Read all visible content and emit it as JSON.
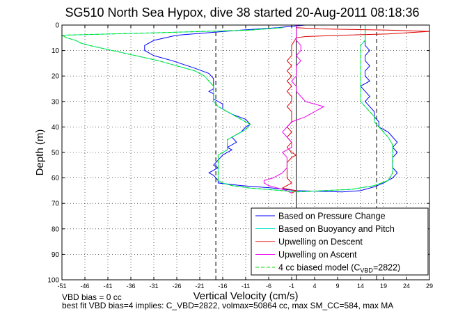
{
  "chart_data": {
    "type": "line",
    "title": "SG510 North Sea Hypox, dive 38 started 20-Aug-2011 08:18:36",
    "xlabel": "Vertical Velocity (cm/s)",
    "ylabel": "Depth (m)",
    "xlim": [
      -51,
      29
    ],
    "ylim": [
      0,
      100
    ],
    "y_reversed": true,
    "grid": true,
    "xticks": [
      -51,
      -46,
      -41,
      -36,
      -31,
      -26,
      -21,
      -16,
      -11,
      -6,
      -1,
      4,
      9,
      14,
      19,
      24,
      29
    ],
    "yticks": [
      0,
      10,
      20,
      30,
      40,
      50,
      60,
      70,
      80,
      90,
      100
    ],
    "vertical_lines": [
      {
        "x": -17.5,
        "style": "dashed"
      },
      {
        "x": 17.5,
        "style": "dashed"
      },
      {
        "x": 0,
        "style": "solid"
      }
    ],
    "legend_position": "bottom-right",
    "series": [
      {
        "name": "Based on Pressure Change",
        "color": "#0000ff",
        "points": [
          [
            2,
            0
          ],
          [
            -1,
            0.5
          ],
          [
            -4,
            1
          ],
          [
            -12,
            2
          ],
          [
            -26,
            4
          ],
          [
            -31,
            6
          ],
          [
            -33,
            8
          ],
          [
            -33,
            10
          ],
          [
            -31,
            12
          ],
          [
            -27,
            14
          ],
          [
            -22,
            17
          ],
          [
            -19,
            19
          ],
          [
            -18,
            21
          ],
          [
            -18,
            23
          ],
          [
            -18,
            25
          ],
          [
            -19,
            26
          ],
          [
            -18,
            27
          ],
          [
            -18,
            29
          ],
          [
            -16,
            31
          ],
          [
            -16,
            33
          ],
          [
            -14,
            35
          ],
          [
            -11,
            37
          ],
          [
            -10,
            39
          ],
          [
            -11,
            40
          ],
          [
            -12,
            42
          ],
          [
            -14,
            44
          ],
          [
            -13,
            46
          ],
          [
            -15,
            48
          ],
          [
            -14,
            49
          ],
          [
            -16,
            51
          ],
          [
            -17,
            53
          ],
          [
            -18,
            55
          ],
          [
            -17,
            56
          ],
          [
            -18,
            57
          ],
          [
            -19,
            58
          ],
          [
            -18,
            59
          ],
          [
            -17,
            61
          ],
          [
            -17,
            62
          ],
          [
            -12,
            63
          ],
          [
            -5,
            64
          ],
          [
            0,
            65
          ],
          [
            10,
            65.5
          ],
          [
            14,
            65
          ],
          [
            17,
            63.5
          ],
          [
            19,
            62
          ],
          [
            21,
            60
          ],
          [
            22,
            58
          ],
          [
            21,
            56
          ],
          [
            21,
            54
          ],
          [
            21,
            52
          ],
          [
            22,
            50
          ],
          [
            21,
            48
          ],
          [
            22,
            46
          ],
          [
            21,
            44
          ],
          [
            20,
            42
          ],
          [
            18,
            40
          ],
          [
            18,
            38
          ],
          [
            17,
            36
          ],
          [
            17,
            34
          ],
          [
            16,
            32
          ],
          [
            15,
            30
          ],
          [
            16,
            28
          ],
          [
            15,
            26
          ],
          [
            14,
            24
          ],
          [
            16,
            22
          ],
          [
            15,
            20
          ],
          [
            15,
            18
          ],
          [
            16,
            16
          ],
          [
            15,
            14
          ],
          [
            15,
            12
          ],
          [
            16,
            10
          ],
          [
            15,
            8
          ],
          [
            15,
            6
          ],
          [
            15,
            4
          ],
          [
            15,
            2
          ],
          [
            15,
            0
          ]
        ]
      },
      {
        "name": "Based on Buoyancy and Pitch",
        "color": "#00e5c0",
        "points": [
          [
            -3,
            1
          ],
          [
            -10,
            2
          ],
          [
            -30,
            3
          ],
          [
            -51,
            4
          ],
          [
            -50,
            5
          ],
          [
            -48,
            6
          ],
          [
            -47,
            7
          ],
          [
            -45,
            8
          ],
          [
            -40,
            10
          ],
          [
            -35,
            12
          ],
          [
            -30,
            14
          ],
          [
            -26,
            16
          ],
          [
            -22,
            18
          ],
          [
            -20,
            20
          ],
          [
            -19,
            22
          ],
          [
            -18,
            24
          ],
          [
            -18,
            26
          ],
          [
            -18,
            28
          ],
          [
            -18,
            30
          ],
          [
            -17,
            32
          ],
          [
            -15,
            34
          ],
          [
            -13,
            36
          ],
          [
            -11,
            38
          ],
          [
            -10,
            39
          ],
          [
            -11,
            41
          ],
          [
            -13,
            43
          ],
          [
            -15,
            45
          ],
          [
            -15,
            47
          ],
          [
            -15,
            49
          ],
          [
            -17,
            51
          ],
          [
            -17,
            53
          ],
          [
            -17,
            55
          ],
          [
            -17,
            57
          ],
          [
            -17,
            59
          ],
          [
            -17,
            61
          ],
          [
            -16,
            62
          ],
          [
            -14,
            63
          ],
          [
            -10,
            64
          ],
          [
            -3,
            65
          ],
          [
            0,
            65.5
          ],
          [
            6,
            65
          ],
          [
            12,
            64.5
          ],
          [
            17,
            63
          ],
          [
            20,
            61
          ],
          [
            21,
            58
          ],
          [
            21,
            55
          ],
          [
            21,
            52
          ],
          [
            21,
            50
          ],
          [
            21,
            47
          ],
          [
            20,
            44
          ],
          [
            19,
            42
          ],
          [
            18,
            40
          ],
          [
            17,
            38
          ],
          [
            17,
            36
          ],
          [
            16,
            34
          ],
          [
            15,
            32
          ],
          [
            14,
            30
          ],
          [
            14,
            28
          ],
          [
            14,
            26
          ],
          [
            14,
            24
          ],
          [
            14,
            22
          ],
          [
            14,
            20
          ],
          [
            14,
            18
          ],
          [
            14,
            16
          ],
          [
            14,
            14
          ],
          [
            14,
            12
          ],
          [
            14,
            10
          ],
          [
            14,
            8
          ],
          [
            15,
            6
          ],
          [
            15,
            4
          ],
          [
            15,
            2
          ],
          [
            15,
            0
          ]
        ]
      },
      {
        "name": "Upwelling on Descent",
        "color": "#dd0000",
        "points": [
          [
            0,
            1
          ],
          [
            5,
            1.5
          ],
          [
            20,
            2
          ],
          [
            29,
            2.5
          ],
          [
            20,
            3.5
          ],
          [
            10,
            4
          ],
          [
            2,
            4.5
          ],
          [
            0,
            5
          ],
          [
            -1,
            8
          ],
          [
            -1,
            10
          ],
          [
            -1,
            12
          ],
          [
            -2,
            14
          ],
          [
            -1,
            16
          ],
          [
            -2,
            18
          ],
          [
            -1,
            20
          ],
          [
            -2,
            22
          ],
          [
            -1,
            24
          ],
          [
            -2,
            26
          ],
          [
            -1,
            28
          ],
          [
            -1,
            30
          ],
          [
            -2,
            32
          ],
          [
            -1,
            34
          ],
          [
            -1,
            36
          ],
          [
            -1,
            38
          ],
          [
            -2,
            40
          ],
          [
            -1,
            42
          ],
          [
            -2,
            44
          ],
          [
            -1,
            46
          ],
          [
            -2,
            48
          ],
          [
            -1,
            50
          ],
          [
            0,
            51
          ],
          [
            -1,
            52
          ],
          [
            -2,
            54
          ],
          [
            -2,
            56
          ],
          [
            -2,
            58
          ],
          [
            -2,
            60
          ],
          [
            -1,
            62
          ],
          [
            -2,
            63
          ],
          [
            -3,
            64
          ],
          [
            0,
            65
          ],
          [
            -1,
            66
          ]
        ]
      },
      {
        "name": "Upwelling on Ascent",
        "color": "#ee00ee",
        "points": [
          [
            -1,
            66
          ],
          [
            -2,
            65
          ],
          [
            -4,
            64
          ],
          [
            -6,
            63
          ],
          [
            -7,
            62
          ],
          [
            -7,
            61
          ],
          [
            -5,
            60
          ],
          [
            -4,
            59
          ],
          [
            -3,
            58
          ],
          [
            -2,
            56
          ],
          [
            -2,
            54
          ],
          [
            -2,
            52
          ],
          [
            -3,
            50
          ],
          [
            -1,
            48
          ],
          [
            -1,
            46
          ],
          [
            -2,
            44
          ],
          [
            -3,
            42
          ],
          [
            -2,
            40
          ],
          [
            -1,
            38
          ],
          [
            2,
            36
          ],
          [
            4,
            34
          ],
          [
            6,
            32
          ],
          [
            4,
            31
          ],
          [
            2,
            30
          ],
          [
            1,
            28
          ],
          [
            0,
            26
          ],
          [
            0,
            24
          ],
          [
            -1,
            22
          ],
          [
            0,
            20
          ],
          [
            0,
            18
          ],
          [
            0,
            16
          ],
          [
            1,
            14
          ],
          [
            0,
            12
          ],
          [
            1,
            10
          ],
          [
            1,
            8
          ],
          [
            0,
            6
          ],
          [
            0,
            4
          ],
          [
            0,
            2
          ],
          [
            0,
            0
          ]
        ]
      },
      {
        "name": "4 cc biased model (C_VBD=2822)",
        "legend_label_main": "4 cc biased model (C",
        "legend_label_sub": "VBD",
        "legend_label_end": "=2822)",
        "color": "#00e000",
        "style": "dashed",
        "points": [
          [
            -3,
            1
          ],
          [
            -10,
            2
          ],
          [
            -30,
            3
          ],
          [
            -51,
            4
          ],
          [
            -50,
            5
          ],
          [
            -48,
            6
          ],
          [
            -47,
            7
          ],
          [
            -45,
            8
          ],
          [
            -40,
            10
          ],
          [
            -35,
            12
          ],
          [
            -30,
            14
          ],
          [
            -26,
            16
          ],
          [
            -22,
            18
          ],
          [
            -20,
            20
          ],
          [
            -19,
            22
          ],
          [
            -18,
            24
          ],
          [
            -18,
            26
          ],
          [
            -18,
            28
          ],
          [
            -18,
            30
          ],
          [
            -17,
            32
          ],
          [
            -15,
            34
          ],
          [
            -13,
            36
          ],
          [
            -11,
            38
          ],
          [
            -10,
            39
          ],
          [
            -11,
            41
          ],
          [
            -13,
            43
          ],
          [
            -15,
            45
          ],
          [
            -15,
            47
          ],
          [
            -15,
            49
          ],
          [
            -17,
            51
          ],
          [
            -17,
            53
          ],
          [
            -17,
            55
          ],
          [
            -17,
            57
          ],
          [
            -17,
            59
          ],
          [
            -17,
            61
          ],
          [
            -16,
            62
          ],
          [
            -14,
            63
          ],
          [
            -10,
            64
          ],
          [
            -3,
            65
          ],
          [
            0,
            65.5
          ],
          [
            6,
            65
          ],
          [
            12,
            64.5
          ],
          [
            17,
            63
          ],
          [
            20,
            61
          ],
          [
            21,
            58
          ],
          [
            21,
            55
          ],
          [
            21,
            52
          ],
          [
            21,
            50
          ],
          [
            21,
            47
          ],
          [
            20,
            44
          ],
          [
            19,
            42
          ],
          [
            18,
            40
          ],
          [
            17,
            38
          ],
          [
            17,
            36
          ],
          [
            16,
            34
          ],
          [
            15,
            32
          ],
          [
            14,
            30
          ],
          [
            14,
            28
          ],
          [
            14,
            26
          ],
          [
            14,
            24
          ],
          [
            14,
            22
          ],
          [
            14,
            20
          ],
          [
            14,
            18
          ],
          [
            14,
            16
          ],
          [
            14,
            14
          ],
          [
            14,
            12
          ],
          [
            14,
            10
          ],
          [
            14,
            8
          ],
          [
            15,
            6
          ],
          [
            15,
            4
          ],
          [
            15,
            2
          ],
          [
            15,
            0
          ]
        ]
      }
    ]
  },
  "notes": {
    "vbd_bias": "VBD bias = 0 cc",
    "best_fit": "best fit VBD bias=4 implies: C_VBD=2822, volmax=50864 cc, max SM_CC=584, max MA"
  }
}
